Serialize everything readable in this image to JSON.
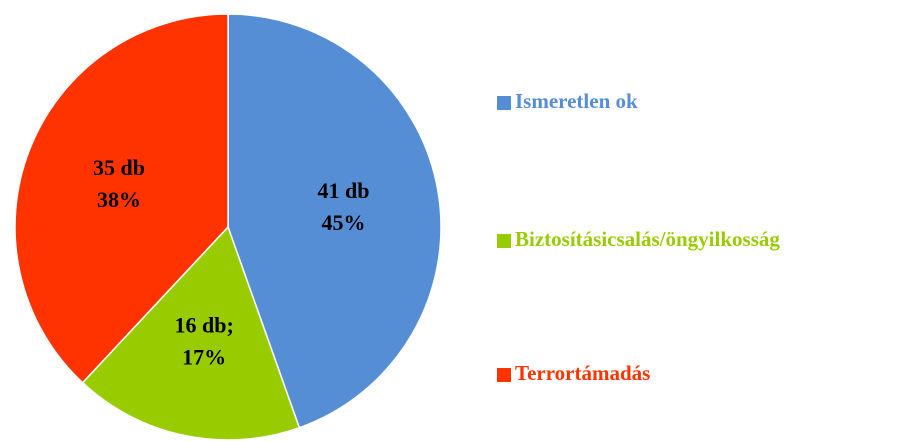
{
  "chart_data": {
    "type": "pie",
    "categories": [
      "Ismeretlen ok",
      "Biztosításicsalás/öngyilkosság",
      "Terrortámadás"
    ],
    "values": [
      41,
      16,
      35
    ],
    "value_labels": [
      "41 db",
      "16 db;",
      "35 db"
    ],
    "percent_labels": [
      "45%",
      "17%",
      "38%"
    ],
    "colors": [
      "#558ed5",
      "#99cc00",
      "#ff3300"
    ],
    "legend": "right"
  }
}
